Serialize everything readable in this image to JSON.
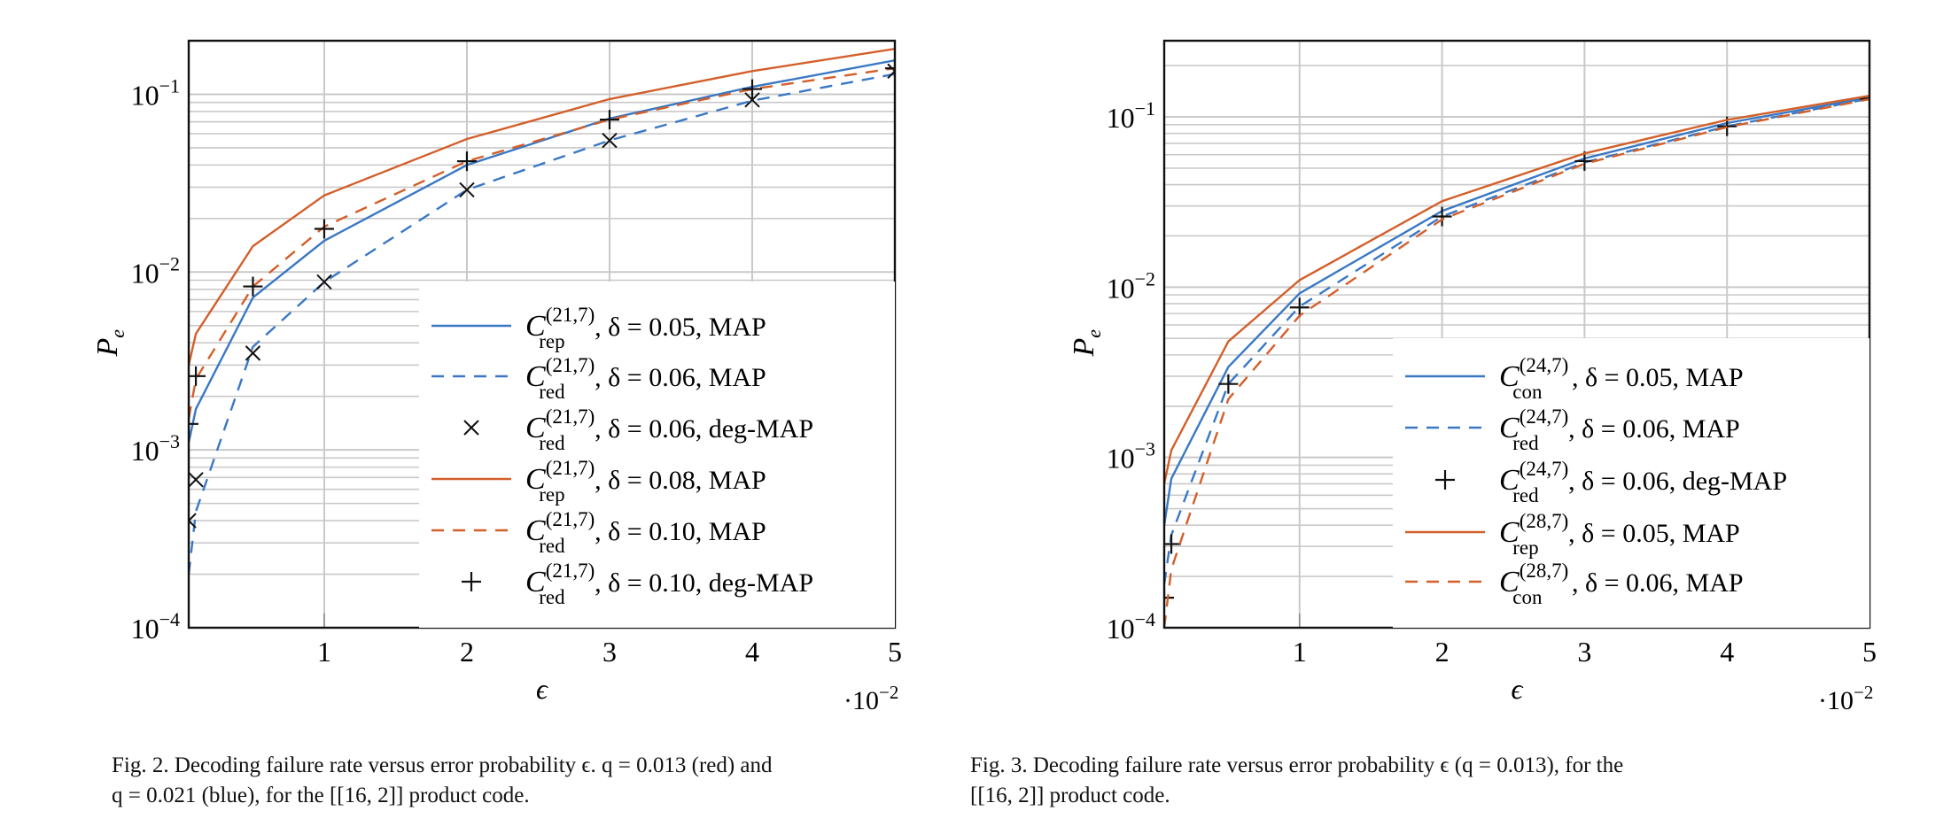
{
  "colors": {
    "blue": "#3a78c4",
    "orange": "#d35f2a",
    "grid": "#c9c9c9",
    "marker": "#111111"
  },
  "chart_data": [
    {
      "type": "line",
      "xlabel": "ϵ",
      "ylabel": "P_e",
      "ylabel_main": "P",
      "ylabel_sub": "e",
      "x_scale_note": "·10",
      "x_scale_exp": "−2",
      "x_ticks": [
        "1",
        "2",
        "3",
        "4",
        "5"
      ],
      "x_tick_values": [
        0.01,
        0.02,
        0.03,
        0.04,
        0.05
      ],
      "y_ticks": [
        {
          "base": "10",
          "exp": "−4",
          "value": 0.0001
        },
        {
          "base": "10",
          "exp": "−3",
          "value": 0.001
        },
        {
          "base": "10",
          "exp": "−2",
          "value": 0.01
        },
        {
          "base": "10",
          "exp": "−1",
          "value": 0.1
        }
      ],
      "xlim": [
        0.0005,
        0.05
      ],
      "ylim": [
        0.0001,
        0.2
      ],
      "y_scale": "log",
      "grid": true,
      "legend_position": "bottom-right",
      "series": [
        {
          "name": "C_rep^(21,7), δ = 0.05, MAP",
          "code": "C",
          "sup": "(21,7)",
          "sub": "rep",
          "rest": ", δ = 0.05, MAP",
          "color": "blue",
          "style": "solid",
          "x": [
            0.0005,
            0.001,
            0.005,
            0.01,
            0.02,
            0.03,
            0.04,
            0.05
          ],
          "y": [
            0.0011,
            0.0017,
            0.0072,
            0.015,
            0.04,
            0.073,
            0.11,
            0.155
          ]
        },
        {
          "name": "C_red^(21,7), δ = 0.06, MAP",
          "code": "C",
          "sup": "(21,7)",
          "sub": "red",
          "rest": ", δ = 0.06, MAP",
          "color": "blue",
          "style": "dashed",
          "x": [
            0.0005,
            0.001,
            0.005,
            0.01,
            0.02,
            0.03,
            0.04,
            0.05
          ],
          "y": [
            0.0002,
            0.00045,
            0.0038,
            0.0088,
            0.029,
            0.055,
            0.092,
            0.13
          ]
        },
        {
          "name": "C_red^(21,7), δ = 0.06, deg-MAP",
          "code": "C",
          "sup": "(21,7)",
          "sub": "red",
          "rest": ", δ = 0.06, deg-MAP",
          "color": "marker",
          "style": "x-marker",
          "x": [
            0.0005,
            0.001,
            0.005,
            0.01,
            0.02,
            0.03,
            0.04,
            0.05
          ],
          "y": [
            0.0004,
            0.00068,
            0.0035,
            0.0088,
            0.029,
            0.055,
            0.093,
            0.135
          ]
        },
        {
          "name": "C_rep^(21,7), δ = 0.08, MAP",
          "code": "C",
          "sup": "(21,7)",
          "sub": "rep",
          "rest": ", δ = 0.08, MAP",
          "color": "orange",
          "style": "solid",
          "x": [
            0.0005,
            0.001,
            0.005,
            0.01,
            0.02,
            0.03,
            0.04,
            0.05
          ],
          "y": [
            0.003,
            0.0045,
            0.014,
            0.027,
            0.056,
            0.094,
            0.135,
            0.18
          ]
        },
        {
          "name": "C_red^(21,7), δ = 0.10, MAP",
          "code": "C",
          "sup": "(21,7)",
          "sub": "red",
          "rest": ", δ = 0.10, MAP",
          "color": "orange",
          "style": "dashed",
          "x": [
            0.0005,
            0.001,
            0.005,
            0.01,
            0.02,
            0.03,
            0.04,
            0.05
          ],
          "y": [
            0.0015,
            0.0025,
            0.0083,
            0.018,
            0.042,
            0.072,
            0.107,
            0.14
          ]
        },
        {
          "name": "C_red^(21,7), δ = 0.10, deg-MAP",
          "code": "C",
          "sup": "(21,7)",
          "sub": "red",
          "rest": ", δ = 0.10, deg-MAP",
          "color": "marker",
          "style": "plus-marker",
          "x": [
            0.0005,
            0.001,
            0.005,
            0.01,
            0.02,
            0.03,
            0.04,
            0.05
          ],
          "y": [
            0.0014,
            0.0026,
            0.0083,
            0.0175,
            0.042,
            0.072,
            0.107,
            0.14
          ]
        }
      ]
    },
    {
      "type": "line",
      "xlabel": "ϵ",
      "ylabel": "P_e",
      "ylabel_main": "P",
      "ylabel_sub": "e",
      "x_scale_note": "·10",
      "x_scale_exp": "−2",
      "x_ticks": [
        "1",
        "2",
        "3",
        "4",
        "5"
      ],
      "x_tick_values": [
        0.01,
        0.02,
        0.03,
        0.04,
        0.05
      ],
      "y_ticks": [
        {
          "base": "10",
          "exp": "−4",
          "value": 0.0001
        },
        {
          "base": "10",
          "exp": "−3",
          "value": 0.001
        },
        {
          "base": "10",
          "exp": "−2",
          "value": 0.01
        },
        {
          "base": "10",
          "exp": "−1",
          "value": 0.1
        }
      ],
      "xlim": [
        0.0005,
        0.05
      ],
      "ylim": [
        0.0001,
        0.28
      ],
      "y_scale": "log",
      "grid": true,
      "legend_position": "bottom-right",
      "series": [
        {
          "name": "C_con^(24,7), δ = 0.05, MAP",
          "code": "C",
          "sup": "(24,7)",
          "sub": "con",
          "rest": ", δ = 0.05, MAP",
          "color": "blue",
          "style": "solid",
          "x": [
            0.0005,
            0.001,
            0.005,
            0.01,
            0.02,
            0.03,
            0.04,
            0.05
          ],
          "y": [
            0.0004,
            0.00075,
            0.0034,
            0.0092,
            0.028,
            0.057,
            0.092,
            0.13
          ]
        },
        {
          "name": "C_red^(24,7), δ = 0.06, MAP",
          "code": "C",
          "sup": "(24,7)",
          "sub": "red",
          "rest": ", δ = 0.06, MAP",
          "color": "blue",
          "style": "dashed",
          "x": [
            0.0005,
            0.001,
            0.005,
            0.01,
            0.02,
            0.03,
            0.04,
            0.05
          ],
          "y": [
            0.00018,
            0.00035,
            0.0027,
            0.0077,
            0.026,
            0.054,
            0.088,
            0.128
          ]
        },
        {
          "name": "C_red^(24,7), δ = 0.06, deg-MAP",
          "code": "C",
          "sup": "(24,7)",
          "sub": "red",
          "rest": ", δ = 0.06, deg-MAP",
          "color": "marker",
          "style": "plus-marker",
          "x": [
            0.0005,
            0.001,
            0.005,
            0.01,
            0.02,
            0.03,
            0.04,
            0.05
          ],
          "y": [
            0.00015,
            0.00031,
            0.0027,
            0.0076,
            0.026,
            0.055,
            0.088,
            0.128
          ]
        },
        {
          "name": "C_rep^(28,7), δ = 0.05, MAP",
          "code": "C",
          "sup": "(28,7)",
          "sub": "rep",
          "rest": ", δ = 0.05, MAP",
          "color": "orange",
          "style": "solid",
          "x": [
            0.0005,
            0.001,
            0.005,
            0.01,
            0.02,
            0.03,
            0.04,
            0.05
          ],
          "y": [
            0.0007,
            0.0011,
            0.0048,
            0.011,
            0.032,
            0.061,
            0.096,
            0.133
          ]
        },
        {
          "name": "C_con^(28,7), δ = 0.06, MAP",
          "code": "C",
          "sup": "(28,7)",
          "sub": "con",
          "rest": ", δ = 0.06, MAP",
          "color": "orange",
          "style": "dashed",
          "x": [
            0.0005,
            0.001,
            0.005,
            0.01,
            0.02,
            0.03,
            0.04,
            0.05
          ],
          "y": [
            0.0001,
            0.00022,
            0.0022,
            0.0068,
            0.025,
            0.053,
            0.087,
            0.127
          ]
        }
      ]
    }
  ],
  "captions": [
    {
      "lines": [
        "Fig. 2.  Decoding failure rate versus error probability ϵ. q = 0.013 (red) and",
        "q = 0.021 (blue), for the [[16, 2]] product code."
      ]
    },
    {
      "lines": [
        "Fig. 3.  Decoding failure rate versus error probability ϵ (q = 0.013), for the",
        "[[16, 2]] product code."
      ]
    }
  ]
}
